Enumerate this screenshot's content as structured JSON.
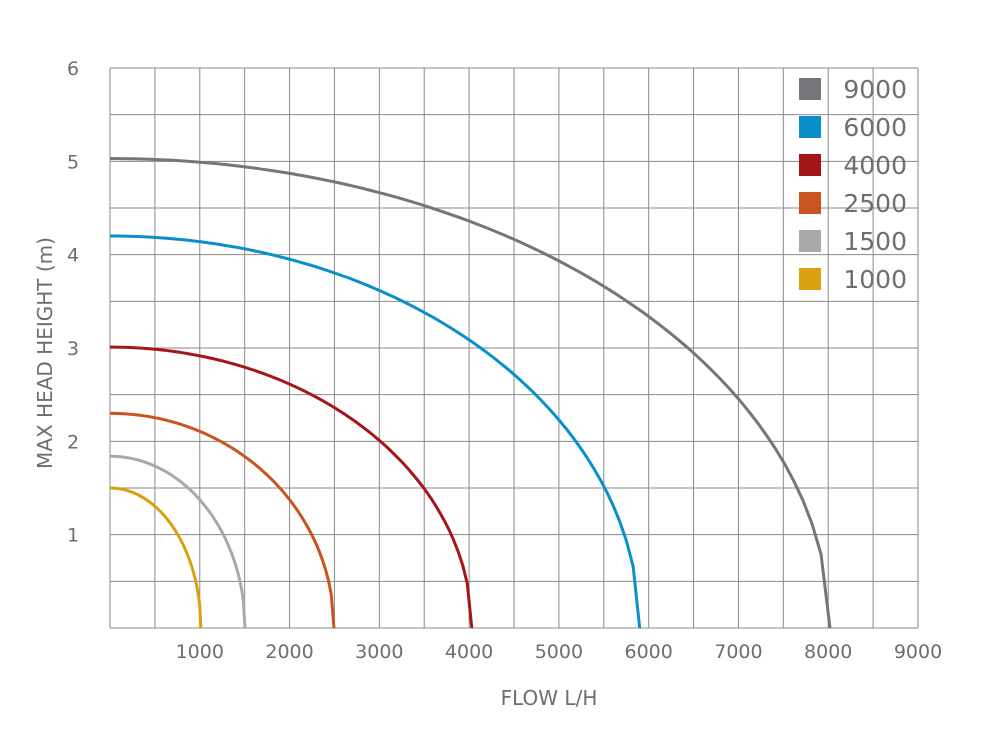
{
  "chart_data": {
    "type": "line",
    "title": "",
    "xlabel": "FLOW L/H",
    "ylabel": "MAX HEAD HEIGHT (m)",
    "xlim": [
      0,
      9000
    ],
    "ylim": [
      0,
      6
    ],
    "x_ticks": [
      "1000",
      "2000",
      "3000",
      "4000",
      "5000",
      "6000",
      "7000",
      "8000",
      "9000"
    ],
    "y_ticks": [
      "1",
      "2",
      "3",
      "4",
      "5",
      "6"
    ],
    "grid": true,
    "legend_position": "top-right",
    "series": [
      {
        "name": "9000",
        "color": "#76767a",
        "points": [
          [
            0,
            5.03
          ],
          [
            2005,
            4.87
          ],
          [
            4010,
            4.36
          ],
          [
            5614,
            3.59
          ],
          [
            6416,
            3.02
          ],
          [
            7218,
            2.19
          ],
          [
            7619,
            1.57
          ],
          [
            8020,
            0
          ]
        ]
      },
      {
        "name": "6000",
        "color": "#0a8fca",
        "points": [
          [
            0,
            4.2
          ],
          [
            1475,
            4.07
          ],
          [
            2950,
            3.64
          ],
          [
            4130,
            3.0
          ],
          [
            4720,
            2.52
          ],
          [
            5310,
            1.83
          ],
          [
            5605,
            1.31
          ],
          [
            5900,
            0
          ]
        ]
      },
      {
        "name": "4000",
        "color": "#a5161b",
        "points": [
          [
            0,
            3.01
          ],
          [
            1008,
            2.91
          ],
          [
            2015,
            2.61
          ],
          [
            2821,
            2.15
          ],
          [
            3224,
            1.81
          ],
          [
            3627,
            1.31
          ],
          [
            3829,
            0.94
          ],
          [
            4030,
            0
          ]
        ]
      },
      {
        "name": "2500",
        "color": "#c9541f",
        "points": [
          [
            0,
            2.3
          ],
          [
            624,
            2.23
          ],
          [
            1248,
            1.99
          ],
          [
            1747,
            1.64
          ],
          [
            1996,
            1.38
          ],
          [
            2246,
            1.0
          ],
          [
            2370,
            0.72
          ],
          [
            2495,
            0
          ]
        ]
      },
      {
        "name": "1500",
        "color": "#a9a9ab",
        "points": [
          [
            0,
            1.84
          ],
          [
            376,
            1.78
          ],
          [
            752,
            1.59
          ],
          [
            1053,
            1.31
          ],
          [
            1203,
            1.1
          ],
          [
            1354,
            0.8
          ],
          [
            1429,
            0.57
          ],
          [
            1504,
            0
          ]
        ]
      },
      {
        "name": "1000",
        "color": "#d9a010",
        "points": [
          [
            0,
            1.5
          ],
          [
            253,
            1.45
          ],
          [
            507,
            1.3
          ],
          [
            709,
            1.07
          ],
          [
            810,
            0.9
          ],
          [
            912,
            0.65
          ],
          [
            962,
            0.47
          ],
          [
            1013,
            0
          ]
        ]
      }
    ]
  }
}
